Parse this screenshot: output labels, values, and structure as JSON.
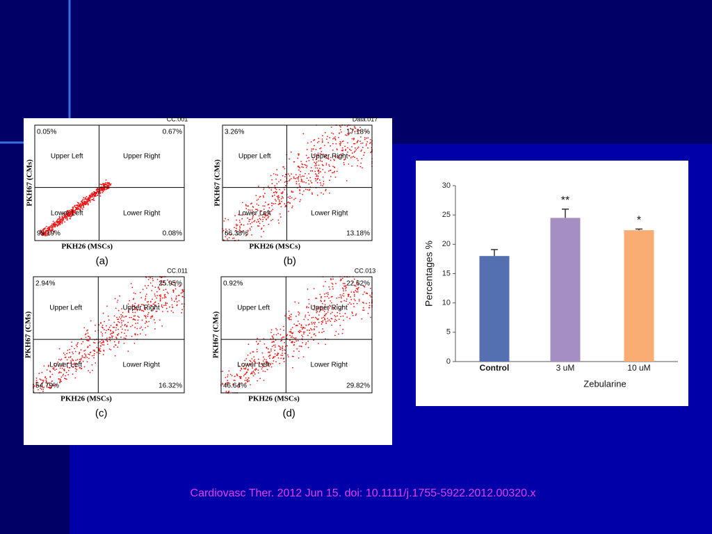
{
  "chart_data": {
    "type": "bar",
    "categories": [
      "Control",
      "3 uM",
      "10 uM"
    ],
    "values": [
      18,
      24.5,
      22.4
    ],
    "errors": [
      1.1,
      1.5,
      0.2
    ],
    "significance": [
      null,
      "**",
      "*"
    ],
    "colors": [
      "#5470b0",
      "#a58fc2",
      "#f9ad72"
    ],
    "ylim": [
      0,
      30
    ],
    "yticks": [
      0,
      5,
      10,
      15,
      20,
      25,
      30
    ],
    "ylabel": "Percentages %",
    "xlabel": "Zebularine"
  },
  "flow_labels": {
    "upper_left": "Upper Left",
    "upper_right": "Upper Right",
    "lower_left": "Lower Left",
    "lower_right": "Lower Right",
    "y_axis": "PKH67 (CMs)",
    "x_axis": "PKH26 (MSCs)"
  },
  "flow_panels": [
    {
      "id": "CC.001",
      "letter": "(a)",
      "upper_left": "0.05%",
      "upper_right": "0.67%",
      "lower_left": "99.19%",
      "lower_right": "0.08%"
    },
    {
      "id": "Data.017",
      "letter": "(b)",
      "upper_left": "3.26%",
      "upper_right": "17.18%",
      "lower_left": "66.38%",
      "lower_right": "13.18%"
    },
    {
      "id": "CC.011",
      "letter": "(c)",
      "upper_left": "2.94%",
      "upper_right": "25.95%",
      "lower_left": "54.79%",
      "lower_right": "16.32%"
    },
    {
      "id": "CC.013",
      "letter": "(d)",
      "upper_left": "0.92%",
      "upper_right": "22.62%",
      "lower_left": "46.64%",
      "lower_right": "29.82%"
    }
  ],
  "citation": "Cardiovasc Ther. 2012 Jun 15. doi: 10.1111/j.1755-5922.2012.00320.x"
}
